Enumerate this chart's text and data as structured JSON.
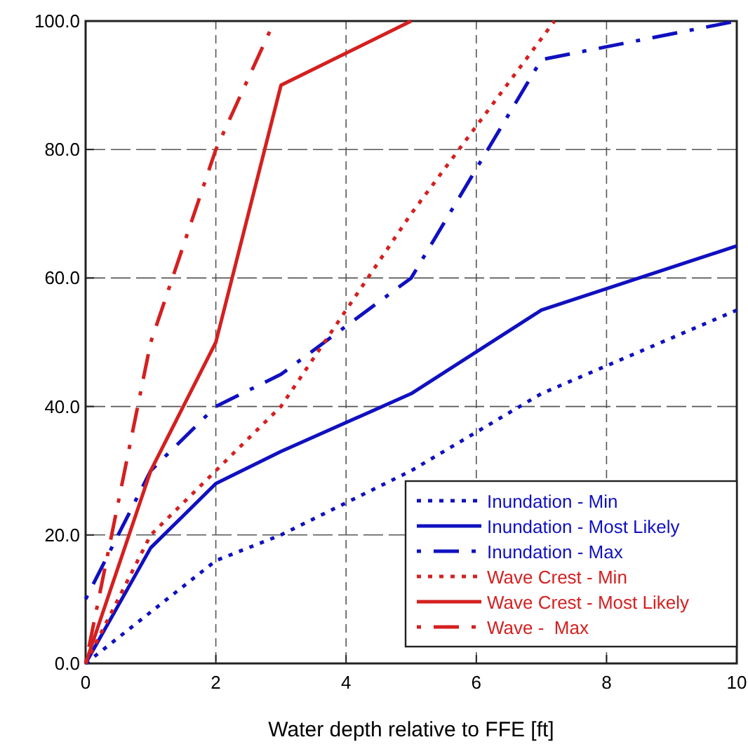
{
  "chart_data": {
    "type": "line",
    "xlabel": "Water depth relative to FFE [ft]",
    "xlim": [
      0,
      10
    ],
    "ylim": [
      0,
      100
    ],
    "xticks": [
      0,
      2,
      4,
      6,
      8,
      10
    ],
    "yticks": [
      {
        "value": 0,
        "label": "0.0"
      },
      {
        "value": 20,
        "label": "20.0"
      },
      {
        "value": 40,
        "label": "40.0"
      },
      {
        "value": 60,
        "label": "60.0"
      },
      {
        "value": 80,
        "label": "80.0"
      },
      {
        "value": 100,
        "label": "100.0"
      }
    ],
    "grid": true,
    "legend": "bottom right",
    "series": [
      {
        "name": "Inundation - Min",
        "color": "#1010c0",
        "line_style": "dotted",
        "x": [
          0,
          2,
          3,
          5,
          7,
          10
        ],
        "values": [
          0,
          16,
          20,
          30,
          42,
          55
        ]
      },
      {
        "name": "Inundation - Most Likely",
        "color": "#1010c0",
        "line_style": "solid",
        "x": [
          0,
          1,
          2,
          3,
          5,
          7,
          10
        ],
        "values": [
          0,
          18,
          28,
          33,
          42,
          55,
          65
        ]
      },
      {
        "name": "Inundation - Max",
        "color": "#1010c0",
        "line_style": "dashed",
        "x": [
          0,
          1,
          2,
          3,
          5,
          7,
          10
        ],
        "values": [
          10,
          30,
          40,
          45,
          60,
          94,
          100
        ]
      },
      {
        "name": "Wave Crest - Min",
        "color": "#d42020",
        "line_style": "dotted",
        "x": [
          0,
          1,
          2,
          3,
          5,
          7.2
        ],
        "values": [
          0,
          20,
          30,
          40,
          70,
          100
        ]
      },
      {
        "name": "Wave Crest - Most Likely",
        "color": "#d42020",
        "line_style": "solid",
        "x": [
          0,
          1,
          2,
          3,
          5
        ],
        "values": [
          0,
          30,
          50,
          90,
          100
        ]
      },
      {
        "name": "Wave -  Max",
        "color": "#d42020",
        "line_style": "dashed",
        "x": [
          0,
          1,
          2,
          2.9
        ],
        "values": [
          0,
          50,
          80,
          100
        ]
      }
    ]
  }
}
